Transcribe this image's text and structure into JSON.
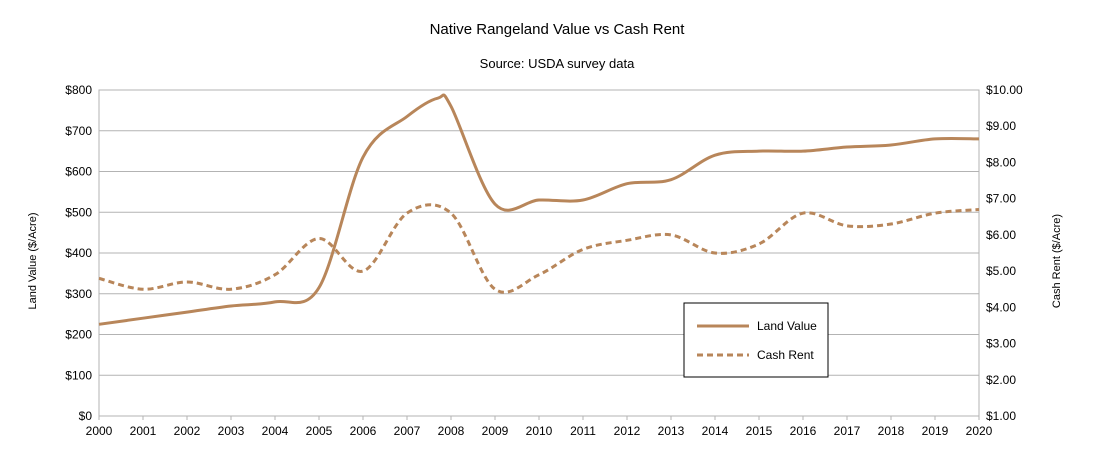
{
  "chart_data": {
    "type": "line",
    "title": "Native Rangeland Value vs Cash Rent",
    "subtitle": "Source: USDA survey data",
    "xlabel": "",
    "ylabel": "Land Value ($/Acre)",
    "y2label": "Cash Rent ($/Acre)",
    "xlim": [
      2000,
      2020
    ],
    "ylim": [
      0,
      800
    ],
    "y2lim": [
      1,
      10
    ],
    "grid": true,
    "legend_position": "lower-right",
    "x_ticks": [
      "2000",
      "2001",
      "2002",
      "2003",
      "2004",
      "2005",
      "2006",
      "2007",
      "2008",
      "2009",
      "2010",
      "2011",
      "2012",
      "2013",
      "2014",
      "2015",
      "2016",
      "2017",
      "2018",
      "2019",
      "2020"
    ],
    "y_ticks": [
      "$0",
      "$100",
      "$200",
      "$300",
      "$400",
      "$500",
      "$600",
      "$700",
      "$800"
    ],
    "y2_ticks": [
      "$1.00",
      "$2.00",
      "$3.00",
      "$4.00",
      "$5.00",
      "$6.00",
      "$7.00",
      "$8.00",
      "$9.00",
      "$10.00"
    ],
    "series": [
      {
        "name": "Land Value",
        "axis": "left",
        "style": "solid",
        "color": "#b8865a",
        "x": [
          2000,
          2001,
          2002,
          2003,
          2004,
          2005,
          2006,
          2007,
          2007.7,
          2008,
          2009,
          2010,
          2011,
          2012,
          2013,
          2014,
          2015,
          2016,
          2017,
          2018,
          2019,
          2020
        ],
        "values": [
          225,
          240,
          255,
          270,
          280,
          315,
          635,
          735,
          780,
          760,
          520,
          530,
          530,
          570,
          580,
          640,
          650,
          650,
          660,
          665,
          680,
          680
        ]
      },
      {
        "name": "Cash Rent",
        "axis": "right",
        "style": "dashed",
        "color": "#b8865a",
        "x": [
          2000,
          2001,
          2002,
          2003,
          2004,
          2005,
          2006,
          2007,
          2008,
          2009,
          2010,
          2011,
          2012,
          2013,
          2014,
          2015,
          2016,
          2017,
          2018,
          2019,
          2020
        ],
        "values": [
          4.8,
          4.5,
          4.7,
          4.5,
          4.9,
          5.9,
          5.0,
          6.6,
          6.6,
          4.5,
          4.9,
          5.6,
          5.85,
          6.0,
          5.5,
          5.75,
          6.6,
          6.25,
          6.3,
          6.6,
          6.7
        ]
      }
    ]
  }
}
